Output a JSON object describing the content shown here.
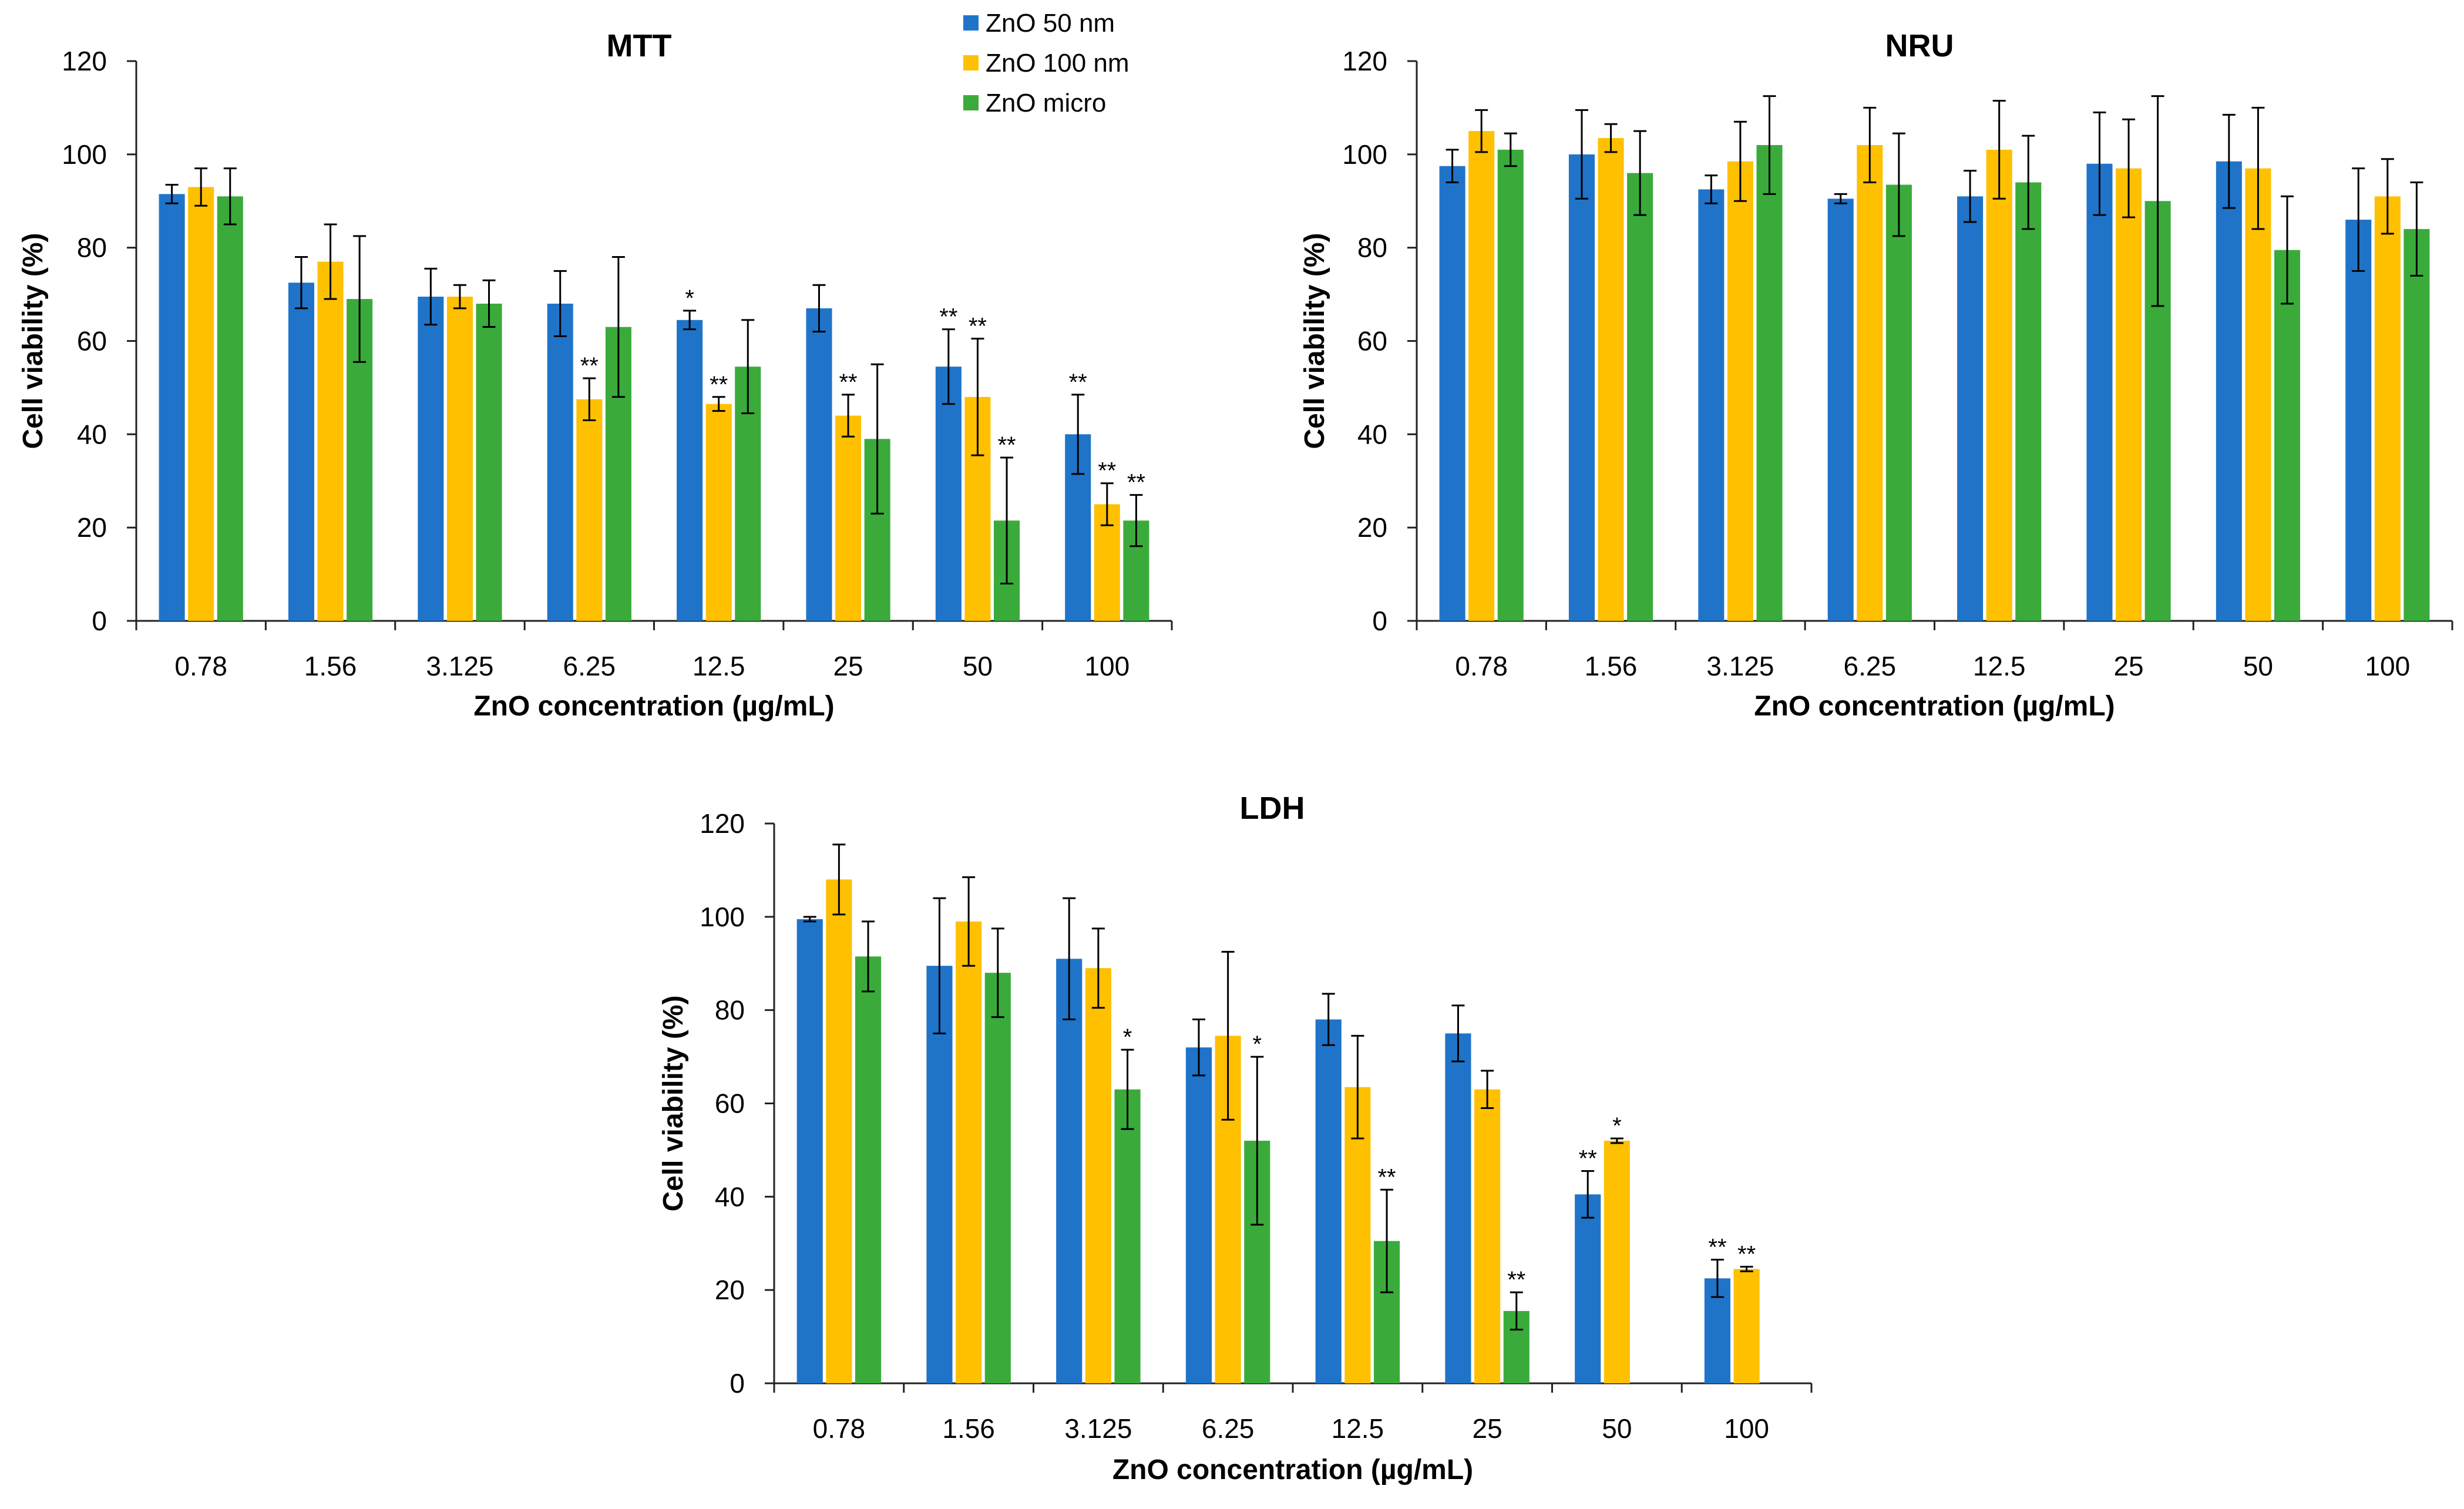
{
  "figure": {
    "series_names": [
      "ZnO 50 nm",
      "ZnO 100 nm",
      "ZnO micro"
    ],
    "series_colors": [
      "#1f74c9",
      "#ffc000",
      "#3aab3a"
    ]
  },
  "chart_data": [
    {
      "type": "bar",
      "title": "MTT",
      "xlabel": "ZnO concentration (µg/mL)",
      "ylabel": "Cell viability (%)",
      "ylim": [
        0,
        120
      ],
      "yticks": [
        0,
        20,
        40,
        60,
        80,
        100,
        120
      ],
      "categories": [
        "0.78",
        "1.56",
        "3.125",
        "6.25",
        "12.5",
        "25",
        "50",
        "100"
      ],
      "legend": "top-center",
      "series": [
        {
          "name": "ZnO 50 nm",
          "color": "#1f74c9",
          "values": [
            91.5,
            72.5,
            69.5,
            68,
            64.5,
            67,
            54.5,
            40
          ],
          "errors": [
            2,
            5.5,
            6,
            7,
            2,
            5,
            8,
            8.5
          ],
          "markers": [
            "",
            "",
            "",
            "",
            "*",
            "",
            "**",
            "**"
          ]
        },
        {
          "name": "ZnO 100 nm",
          "color": "#ffc000",
          "values": [
            93,
            77,
            69.5,
            47.5,
            46.5,
            44,
            48,
            25
          ],
          "errors": [
            4,
            8,
            2.5,
            4.5,
            1.5,
            4.5,
            12.5,
            4.5
          ],
          "markers": [
            "",
            "",
            "",
            "**",
            "**",
            "**",
            "**",
            "**"
          ]
        },
        {
          "name": "ZnO micro",
          "color": "#3aab3a",
          "values": [
            91,
            69,
            68,
            63,
            54.5,
            39,
            21.5,
            21.5
          ],
          "errors": [
            6,
            13.5,
            5,
            15,
            10,
            16,
            13.5,
            5.5
          ],
          "markers": [
            "",
            "",
            "",
            "",
            "",
            "",
            "**",
            "**"
          ]
        }
      ]
    },
    {
      "type": "bar",
      "title": "NRU",
      "xlabel": "ZnO concentration (µg/mL)",
      "ylabel": "Cell viability (%)",
      "ylim": [
        0,
        120
      ],
      "yticks": [
        0,
        20,
        40,
        60,
        80,
        100,
        120
      ],
      "categories": [
        "0.78",
        "1.56",
        "3.125",
        "6.25",
        "12.5",
        "25",
        "50",
        "100"
      ],
      "series": [
        {
          "name": "ZnO 50 nm",
          "color": "#1f74c9",
          "values": [
            97.5,
            100,
            92.5,
            90.5,
            91,
            98,
            98.5,
            86
          ],
          "errors": [
            3.5,
            9.5,
            3,
            1,
            5.5,
            11,
            10,
            11
          ],
          "markers": [
            "",
            "",
            "",
            "",
            "",
            "",
            "",
            ""
          ]
        },
        {
          "name": "ZnO 100 nm",
          "color": "#ffc000",
          "values": [
            105,
            103.5,
            98.5,
            102,
            101,
            97,
            97,
            91
          ],
          "errors": [
            4.5,
            3,
            8.5,
            8,
            10.5,
            10.5,
            13,
            8
          ],
          "markers": [
            "",
            "",
            "",
            "",
            "",
            "",
            "",
            ""
          ]
        },
        {
          "name": "ZnO micro",
          "color": "#3aab3a",
          "values": [
            101,
            96,
            102,
            93.5,
            94,
            90,
            79.5,
            84
          ],
          "errors": [
            3.5,
            9,
            10.5,
            11,
            10,
            22.5,
            11.5,
            10
          ],
          "markers": [
            "",
            "",
            "",
            "",
            "",
            "",
            "",
            ""
          ]
        }
      ]
    },
    {
      "type": "bar",
      "title": "LDH",
      "xlabel": "ZnO concentration (µg/mL)",
      "ylabel": "Cell viability (%)",
      "ylim": [
        0,
        120
      ],
      "yticks": [
        0,
        20,
        40,
        60,
        80,
        100,
        120
      ],
      "categories": [
        "0.78",
        "1.56",
        "3.125",
        "6.25",
        "12.5",
        "25",
        "50",
        "100"
      ],
      "series": [
        {
          "name": "ZnO 50 nm",
          "color": "#1f74c9",
          "values": [
            99.5,
            89.5,
            91,
            72,
            78,
            75,
            40.5,
            22.5
          ],
          "errors": [
            0.5,
            14.5,
            13,
            6,
            5.5,
            6,
            5,
            4
          ],
          "markers": [
            "",
            "",
            "",
            "",
            "",
            "",
            "**",
            "**"
          ]
        },
        {
          "name": "ZnO 100 nm",
          "color": "#ffc000",
          "values": [
            108,
            99,
            89,
            74.5,
            63.5,
            63,
            52,
            24.5
          ],
          "errors": [
            7.5,
            9.5,
            8.5,
            18,
            11,
            4,
            0.5,
            0.5
          ],
          "markers": [
            "",
            "",
            "",
            "",
            "",
            "",
            "*",
            "**"
          ]
        },
        {
          "name": "ZnO micro",
          "color": "#3aab3a",
          "values": [
            91.5,
            88,
            63,
            52,
            30.5,
            15.5,
            null,
            null
          ],
          "errors": [
            7.5,
            9.5,
            8.5,
            18,
            11,
            4,
            null,
            null
          ],
          "markers": [
            "",
            "",
            "*",
            "*",
            "**",
            "**",
            "",
            ""
          ]
        }
      ]
    }
  ]
}
